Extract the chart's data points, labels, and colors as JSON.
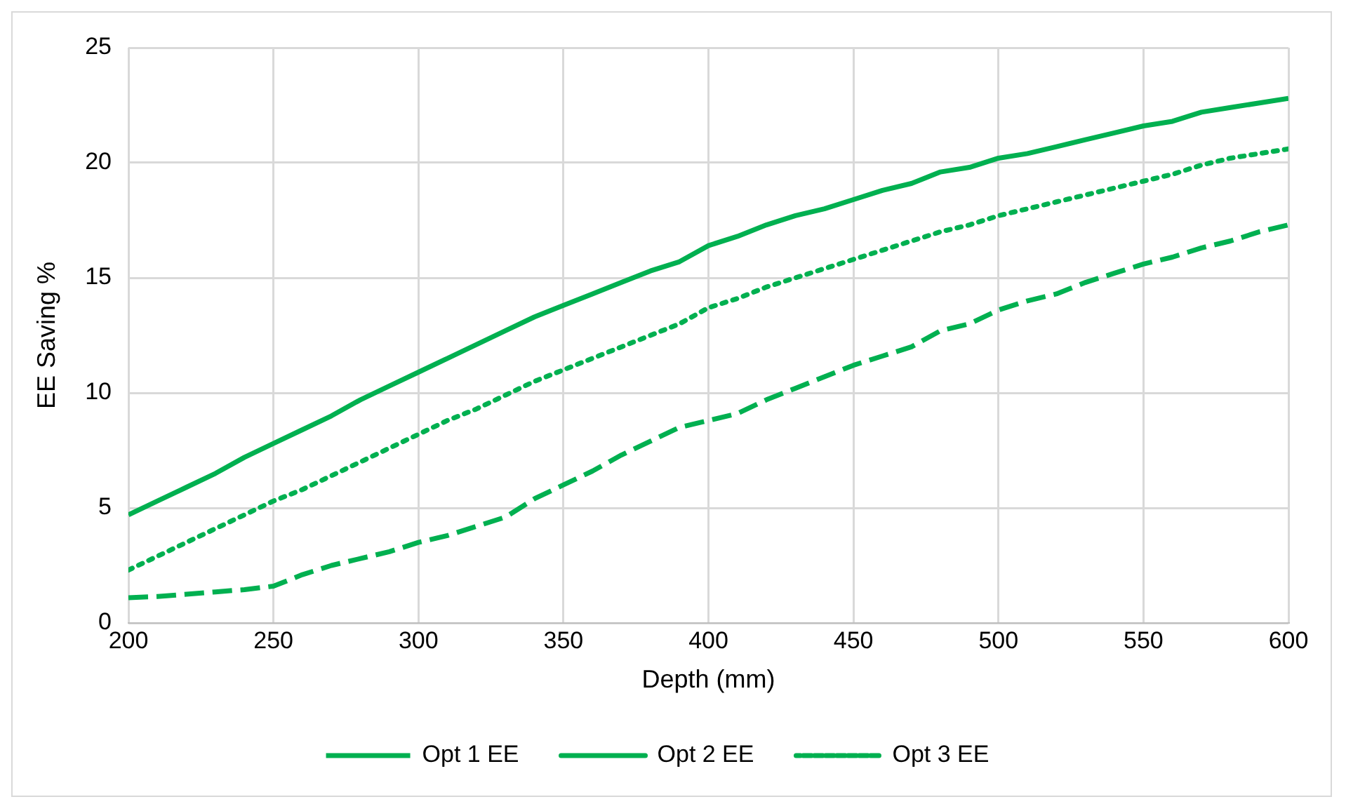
{
  "chart_data": {
    "type": "line",
    "xlabel": "Depth (mm)",
    "ylabel": "EE Saving %",
    "x": [
      200,
      210,
      220,
      230,
      240,
      250,
      260,
      270,
      280,
      290,
      300,
      310,
      320,
      330,
      340,
      350,
      360,
      370,
      380,
      390,
      400,
      410,
      420,
      430,
      440,
      450,
      460,
      470,
      480,
      490,
      500,
      510,
      520,
      530,
      540,
      550,
      560,
      570,
      580,
      590,
      600
    ],
    "series": [
      {
        "name": "Opt 1 EE",
        "color": "#00b050",
        "line_style": "dashed",
        "values": [
          1.1,
          1.15,
          1.25,
          1.35,
          1.45,
          1.6,
          2.1,
          2.5,
          2.8,
          3.1,
          3.5,
          3.8,
          4.2,
          4.6,
          5.4,
          6.0,
          6.6,
          7.3,
          7.9,
          8.5,
          8.8,
          9.1,
          9.7,
          10.2,
          10.7,
          11.2,
          11.6,
          12.0,
          12.7,
          13.0,
          13.6,
          14.0,
          14.3,
          14.8,
          15.2,
          15.6,
          15.9,
          16.3,
          16.6,
          17.0,
          17.3
        ]
      },
      {
        "name": "Opt 2 EE",
        "color": "#00b050",
        "line_style": "solid",
        "values": [
          4.7,
          5.3,
          5.9,
          6.5,
          7.2,
          7.8,
          8.4,
          9.0,
          9.7,
          10.3,
          10.9,
          11.5,
          12.1,
          12.7,
          13.3,
          13.8,
          14.3,
          14.8,
          15.3,
          15.7,
          16.4,
          16.8,
          17.3,
          17.7,
          18.0,
          18.4,
          18.8,
          19.1,
          19.6,
          19.8,
          20.2,
          20.4,
          20.7,
          21.0,
          21.3,
          21.6,
          21.8,
          22.2,
          22.4,
          22.6,
          22.8
        ]
      },
      {
        "name": "Opt 3 EE",
        "color": "#00b050",
        "line_style": "dotted",
        "values": [
          2.3,
          2.9,
          3.5,
          4.1,
          4.7,
          5.3,
          5.8,
          6.4,
          7.0,
          7.6,
          8.2,
          8.8,
          9.3,
          9.9,
          10.5,
          11.0,
          11.5,
          12.0,
          12.5,
          13.0,
          13.7,
          14.1,
          14.6,
          15.0,
          15.4,
          15.8,
          16.2,
          16.6,
          17.0,
          17.3,
          17.7,
          18.0,
          18.3,
          18.6,
          18.9,
          19.2,
          19.5,
          19.9,
          20.2,
          20.4,
          20.6
        ]
      }
    ],
    "xlim": [
      200,
      600
    ],
    "xticks": [
      200,
      250,
      300,
      350,
      400,
      450,
      500,
      550,
      600
    ],
    "ylim": [
      0,
      25
    ],
    "yticks": [
      0,
      5,
      10,
      15,
      20,
      25
    ],
    "grid": true,
    "legend": "bottom",
    "marker": "none"
  }
}
